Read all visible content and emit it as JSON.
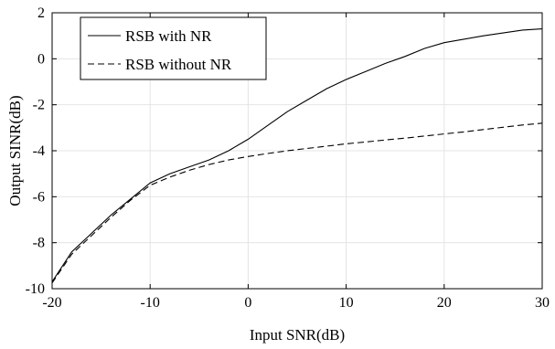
{
  "chart_data": {
    "type": "line",
    "title": "",
    "xlabel": "Input SNR(dB)",
    "ylabel": "Output SINR(dB)",
    "xlim": [
      -20,
      30
    ],
    "ylim": [
      -10,
      2
    ],
    "xticks": [
      -20,
      -10,
      0,
      10,
      20,
      30
    ],
    "yticks": [
      -10,
      -8,
      -6,
      -4,
      -2,
      0,
      2
    ],
    "xtick_labels": [
      "-20",
      "-10",
      "0",
      "10",
      "20",
      "30"
    ],
    "ytick_labels": [
      "-10",
      "-8",
      "-6",
      "-4",
      "-2",
      "0",
      "2"
    ],
    "grid": true,
    "legend_position": "top-left",
    "series": [
      {
        "name": "RSB with NR",
        "line_style": "solid",
        "color": "#000000",
        "x": [
          -20,
          -18,
          -16,
          -14,
          -12,
          -10,
          -8,
          -6,
          -4,
          -2,
          0,
          2,
          4,
          6,
          8,
          10,
          12,
          14,
          16,
          18,
          20,
          22,
          24,
          26,
          28,
          30
        ],
        "y": [
          -9.7,
          -8.4,
          -7.6,
          -6.8,
          -6.1,
          -5.4,
          -5.0,
          -4.7,
          -4.4,
          -4.0,
          -3.5,
          -2.9,
          -2.3,
          -1.8,
          -1.3,
          -0.9,
          -0.55,
          -0.2,
          0.1,
          0.45,
          0.7,
          0.85,
          1.0,
          1.12,
          1.25,
          1.3
        ]
      },
      {
        "name": "RSB without NR",
        "line_style": "dashed",
        "color": "#000000",
        "x": [
          -20,
          -18,
          -16,
          -14,
          -12,
          -10,
          -8,
          -6,
          -4,
          -2,
          0,
          2,
          4,
          6,
          8,
          10,
          12,
          14,
          16,
          18,
          20,
          22,
          24,
          26,
          28,
          30
        ],
        "y": [
          -9.75,
          -8.5,
          -7.7,
          -6.9,
          -6.15,
          -5.5,
          -5.15,
          -4.85,
          -4.6,
          -4.4,
          -4.25,
          -4.12,
          -4.0,
          -3.9,
          -3.8,
          -3.7,
          -3.62,
          -3.53,
          -3.45,
          -3.36,
          -3.27,
          -3.18,
          -3.08,
          -2.98,
          -2.88,
          -2.8
        ]
      }
    ]
  }
}
